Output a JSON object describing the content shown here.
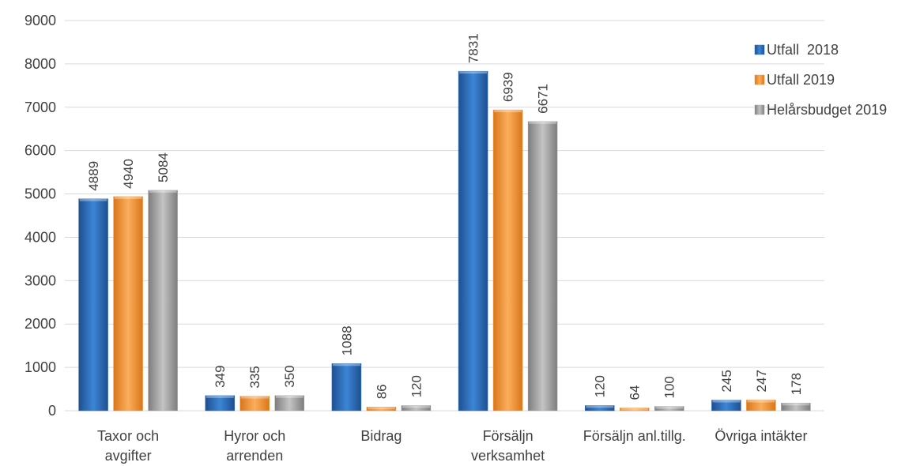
{
  "chart_data": {
    "type": "bar",
    "categories": [
      [
        "Taxor och",
        "avgifter"
      ],
      [
        "Hyror och",
        "arrenden"
      ],
      [
        "Bidrag"
      ],
      [
        "Försäljn",
        "verksamhet"
      ],
      [
        "Försäljn anl.tillg."
      ],
      [
        "Övriga intäkter"
      ]
    ],
    "series": [
      {
        "name": "Utfall  2018",
        "values": [
          4889,
          349,
          1088,
          7831,
          120,
          245
        ],
        "color": "#2e75c8"
      },
      {
        "name": "Utfall 2019",
        "values": [
          4940,
          335,
          86,
          6939,
          64,
          247
        ],
        "color": "#f79b3c"
      },
      {
        "name": "Helårsbudget 2019",
        "values": [
          5084,
          350,
          120,
          6671,
          100,
          178
        ],
        "color": "#a5a5a5"
      }
    ],
    "ylim": [
      0,
      9000
    ],
    "yticks": [
      0,
      1000,
      2000,
      3000,
      4000,
      5000,
      6000,
      7000,
      8000,
      9000
    ],
    "grid": true,
    "legend_position": "right"
  }
}
